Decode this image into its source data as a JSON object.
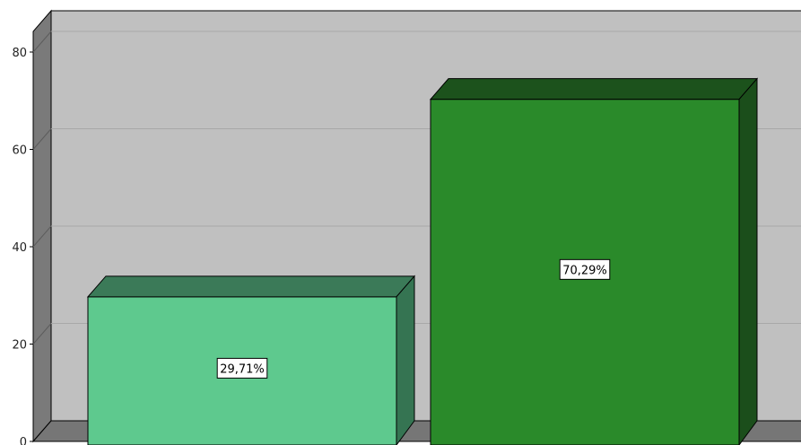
{
  "chart_data": {
    "type": "bar",
    "style": "3d",
    "categories": [
      "",
      ""
    ],
    "values": [
      29.71,
      70.29
    ],
    "data_labels": [
      "29,71%",
      "70,29%"
    ],
    "y_ticks": [
      "0",
      "20",
      "40",
      "60",
      "80"
    ],
    "y_tick_values": [
      0,
      20,
      40,
      60,
      80
    ],
    "ylim": [
      0,
      80
    ],
    "grid": true,
    "legend": "none",
    "colors": {
      "bar_1_front": "#5ec98e",
      "bar_1_top": "#3b7a58",
      "bar_1_side": "#357452",
      "bar_2_front": "#2a8a2a",
      "bar_2_top": "#1c521c",
      "bar_2_side": "#1b4e1b",
      "plot_back": "#c0c0c0",
      "wall_side": "#7a7a7a",
      "floor": "#767676",
      "gridline": "#a8a8a8"
    }
  }
}
